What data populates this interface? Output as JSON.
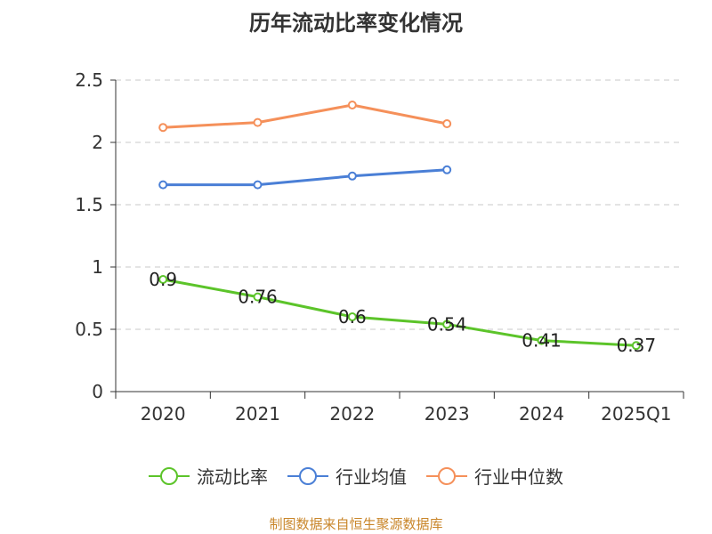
{
  "title": "历年流动比率变化情况",
  "source": "制图数据来自恒生聚源数据库",
  "chart_data": {
    "type": "line",
    "categories": [
      "2020",
      "2021",
      "2022",
      "2023",
      "2024",
      "2025Q1"
    ],
    "ylim": [
      0,
      2.5
    ],
    "yticks": [
      "0",
      "0.5",
      "1",
      "1.5",
      "2",
      "2.5"
    ],
    "grid": true,
    "legend_position": "bottom",
    "series": [
      {
        "name": "流动比率",
        "color": "#5cc42a",
        "values": [
          0.9,
          0.76,
          0.6,
          0.54,
          0.41,
          0.37
        ],
        "labels": [
          "0.9",
          "0.76",
          "0.6",
          "0.54",
          "0.41",
          "0.37"
        ]
      },
      {
        "name": "行业均值",
        "color": "#4a7fd6",
        "values": [
          1.66,
          1.66,
          1.73,
          1.78,
          null,
          null
        ],
        "labels": []
      },
      {
        "name": "行业中位数",
        "color": "#f5905a",
        "values": [
          2.12,
          2.16,
          2.3,
          2.15,
          null,
          null
        ],
        "labels": []
      }
    ]
  }
}
